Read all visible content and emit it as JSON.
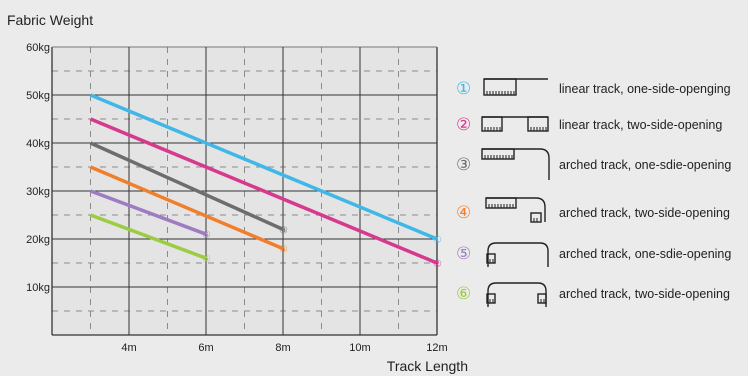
{
  "chart_data": {
    "type": "line",
    "title": "Fabric Weight",
    "xlabel": "Track Length",
    "x_ticks": [
      "4m",
      "6m",
      "8m",
      "10m",
      "12m"
    ],
    "y_ticks": [
      "60kg",
      "50kg",
      "40kg",
      "30kg",
      "20kg",
      "10kg"
    ],
    "xlim": [
      2,
      12
    ],
    "ylim": [
      0,
      60
    ],
    "grid": true,
    "legend_position": "right",
    "series": [
      {
        "marker": "①",
        "name": "linear track, one-side-openging",
        "color": "#3fb8e8",
        "x": [
          3,
          12
        ],
        "y": [
          50,
          20
        ],
        "icon": "linear-one-side-track-icon"
      },
      {
        "marker": "②",
        "name": "linear track, two-side-opening",
        "color": "#d6398d",
        "x": [
          3,
          12
        ],
        "y": [
          45,
          15
        ],
        "icon": "linear-two-side-track-icon"
      },
      {
        "marker": "③",
        "name": "arched track, one-sdie-opening",
        "color": "#6d6d6d",
        "x": [
          3,
          8
        ],
        "y": [
          40,
          22
        ],
        "icon": "arched-one-side-track-icon"
      },
      {
        "marker": "④",
        "name": "arched track, two-side-opening",
        "color": "#f07f2c",
        "x": [
          3,
          8
        ],
        "y": [
          35,
          18
        ],
        "icon": "arched-two-side-track-icon"
      },
      {
        "marker": "⑤",
        "name": "arched track, one-sdie-opening",
        "color": "#9e7cc1",
        "x": [
          3,
          6
        ],
        "y": [
          30,
          21
        ],
        "icon": "arched-one-side-small-track-icon"
      },
      {
        "marker": "⑥",
        "name": "arched track, two-side-opening",
        "color": "#9ccc42",
        "x": [
          3,
          6
        ],
        "y": [
          25,
          16
        ],
        "icon": "arched-two-side-small-track-icon"
      }
    ]
  }
}
